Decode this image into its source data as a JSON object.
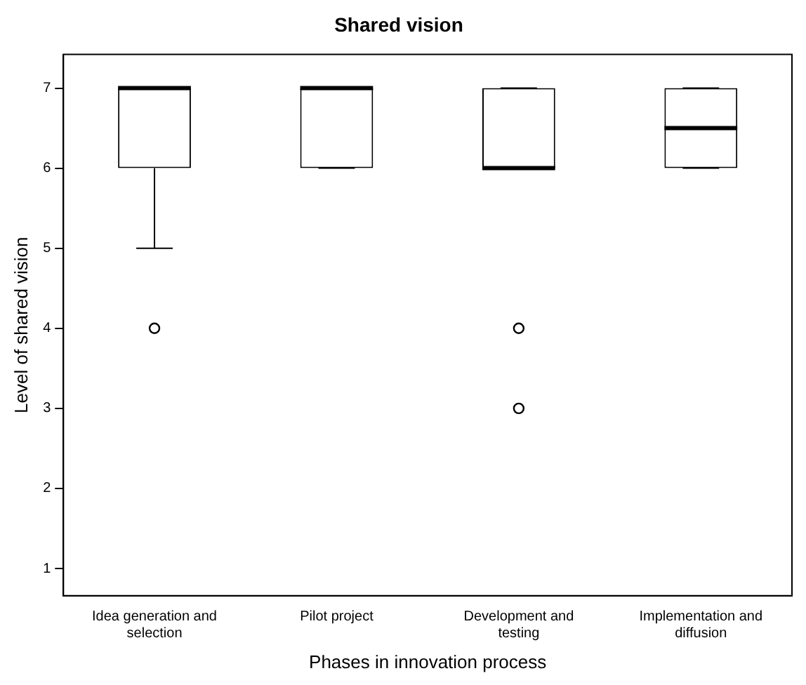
{
  "chart_data": {
    "type": "box",
    "title": "Shared vision",
    "xlabel": "Phases in innovation process",
    "ylabel": "Level of shared vision",
    "categories": [
      "Idea generation and selection",
      "Pilot project",
      "Development and testing",
      "Implementation and diffusion"
    ],
    "boxes": [
      {
        "low": 5,
        "q1": 6,
        "median": 7,
        "q3": 7,
        "high": 7,
        "outliers": [
          4
        ]
      },
      {
        "low": 6,
        "q1": 6,
        "median": 7,
        "q3": 7,
        "high": 7
      },
      {
        "low": 6,
        "q1": 6,
        "median": 6,
        "q3": 7,
        "high": 7,
        "outliers": [
          4,
          3
        ]
      },
      {
        "low": 6,
        "q1": 6,
        "median": 6.5,
        "q3": 7,
        "high": 7
      }
    ],
    "ylim": [
      0.66,
      7.42
    ],
    "yticks": [
      1,
      2,
      3,
      4,
      5,
      6,
      7
    ],
    "grid": false,
    "legend": false
  }
}
